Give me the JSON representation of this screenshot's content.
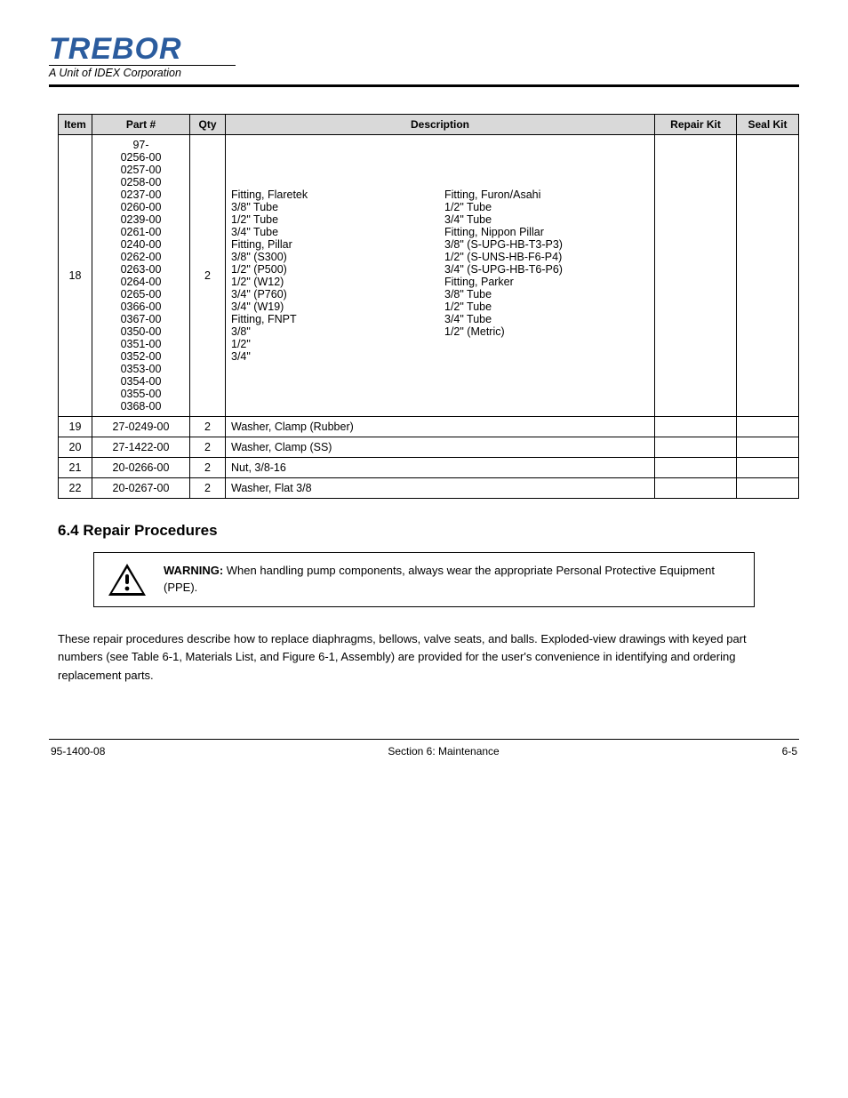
{
  "logo": {
    "main": "TREBOR",
    "sub": "A Unit of IDEX Corporation"
  },
  "table": {
    "headers": [
      "Item",
      "Part #",
      "Qty",
      "Description",
      "Repair Kit",
      "Seal Kit"
    ],
    "rows": [
      {
        "item": "18",
        "part_prefix": "97-",
        "codes": [
          "0256-00",
          "0257-00",
          "0258-00",
          "0237-00",
          "0260-00",
          "0239-00",
          "0261-00",
          "0240-00",
          "0262-00",
          "0263-00",
          "0264-00",
          "0265-00",
          "0366-00",
          "0367-00",
          "0350-00",
          "0351-00",
          "0352-00",
          "0353-00",
          "0354-00",
          "0355-00",
          "0368-00"
        ],
        "qty": "2",
        "desc_col1": [
          "Fitting, Flaretek",
          "3/8\" Tube",
          "1/2\" Tube",
          "3/4\" Tube",
          "Fitting, Pillar",
          "3/8\" (S300)",
          "1/2\" (P500)",
          "1/2\" (W12)",
          "3/4\" (P760)",
          "3/4\" (W19)",
          "Fitting, FNPT",
          "3/8\"",
          "1/2\"",
          "3/4\""
        ],
        "desc_col2": [
          "Fitting, Furon/Asahi",
          "1/2\" Tube",
          "3/4\" Tube",
          "Fitting, Nippon Pillar",
          "3/8\" (S-UPG-HB-T3-P3)",
          "1/2\" (S-UNS-HB-F6-P4)",
          "3/4\" (S-UPG-HB-T6-P6)",
          "Fitting, Parker",
          "3/8\" Tube",
          "1/2\" Tube",
          "3/4\" Tube",
          "1/2\" (Metric)"
        ],
        "rk": "",
        "sk": ""
      },
      {
        "item": "19",
        "part": "27-0249-00",
        "qty": "2",
        "desc": "Washer, Clamp (Rubber)",
        "rk": "",
        "sk": ""
      },
      {
        "item": "20",
        "part": "27-1422-00",
        "qty": "2",
        "desc": "Washer, Clamp (SS)",
        "rk": "",
        "sk": ""
      },
      {
        "item": "21",
        "part": "20-0266-00",
        "qty": "2",
        "desc": "Nut, 3/8-16",
        "rk": "",
        "sk": ""
      },
      {
        "item": "22",
        "part": "20-0267-00",
        "qty": "2",
        "desc": "Washer, Flat 3/8",
        "rk": "",
        "sk": ""
      }
    ]
  },
  "section_title": "6.4 Repair Procedures",
  "warning": {
    "lead": "WARNING:",
    "text": " When handling pump components, always wear the appropriate Personal Protective Equipment (PPE)."
  },
  "para": "These repair procedures describe how to replace diaphragms, bellows, valve seats, and balls. Exploded-view drawings with keyed part numbers (see Table 6-1, Materials List, and Figure 6-1, Assembly) are provided for the user's convenience in identifying and ordering replacement parts.",
  "footer": {
    "left": "95-1400-08",
    "center": "Section 6: Maintenance",
    "right": "6-5"
  },
  "colors": {
    "header_bg": "#d9d9d9",
    "logo": "#2b5c9e"
  }
}
